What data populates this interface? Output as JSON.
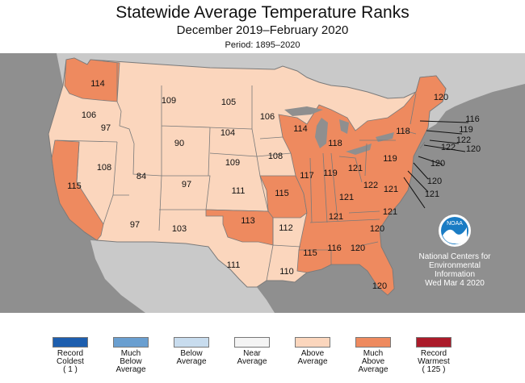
{
  "header": {
    "title": "Statewide Average Temperature Ranks",
    "subtitle": "December 2019–February 2020",
    "period": "Period: 1895–2020"
  },
  "credit": {
    "line1": "National Centers for",
    "line2": "Environmental",
    "line3": "Information",
    "date": "Wed Mar  4 2020",
    "logo_text": "NOAA"
  },
  "colors": {
    "ocean": "#8f8f8f",
    "land_outside": "#c9c9c9",
    "above_average": "#fbd6bd",
    "much_above_average": "#ee8a5f",
    "border": "#7a7a7a"
  },
  "legend": [
    {
      "label": "Record\nColdest\n( 1 )",
      "color": "#1d5eae"
    },
    {
      "label": "Much\nBelow\nAverage",
      "color": "#6a9fd0"
    },
    {
      "label": "Below\nAverage",
      "color": "#c8dcee"
    },
    {
      "label": "Near\nAverage",
      "color": "#f4f4f4"
    },
    {
      "label": "Above\nAverage",
      "color": "#fbd6bd"
    },
    {
      "label": "Much\nAbove\nAverage",
      "color": "#ee8a5f"
    },
    {
      "label": "Record\nWarmest\n( 125 )",
      "color": "#ab1b2a"
    }
  ],
  "states": [
    {
      "abbr": "WA",
      "rank": "114",
      "category": "Much Above Average"
    },
    {
      "abbr": "OR",
      "rank": "106",
      "category": "Above Average"
    },
    {
      "abbr": "CA",
      "rank": "115",
      "category": "Much Above Average"
    },
    {
      "abbr": "ID",
      "rank": "97",
      "category": "Above Average"
    },
    {
      "abbr": "NV",
      "rank": "108",
      "category": "Above Average"
    },
    {
      "abbr": "MT",
      "rank": "109",
      "category": "Above Average"
    },
    {
      "abbr": "WY",
      "rank": "90",
      "category": "Above Average"
    },
    {
      "abbr": "UT",
      "rank": "84",
      "category": "Above Average"
    },
    {
      "abbr": "AZ",
      "rank": "97",
      "category": "Above Average"
    },
    {
      "abbr": "CO",
      "rank": "97",
      "category": "Above Average"
    },
    {
      "abbr": "NM",
      "rank": "103",
      "category": "Above Average"
    },
    {
      "abbr": "ND",
      "rank": "105",
      "category": "Above Average"
    },
    {
      "abbr": "SD",
      "rank": "104",
      "category": "Above Average"
    },
    {
      "abbr": "NE",
      "rank": "109",
      "category": "Above Average"
    },
    {
      "abbr": "KS",
      "rank": "111",
      "category": "Above Average"
    },
    {
      "abbr": "OK",
      "rank": "113",
      "category": "Much Above Average"
    },
    {
      "abbr": "TX",
      "rank": "111",
      "category": "Above Average"
    },
    {
      "abbr": "MN",
      "rank": "106",
      "category": "Above Average"
    },
    {
      "abbr": "IA",
      "rank": "108",
      "category": "Above Average"
    },
    {
      "abbr": "MO",
      "rank": "115",
      "category": "Much Above Average"
    },
    {
      "abbr": "AR",
      "rank": "112",
      "category": "Above Average"
    },
    {
      "abbr": "LA",
      "rank": "110",
      "category": "Above Average"
    },
    {
      "abbr": "WI",
      "rank": "114",
      "category": "Much Above Average"
    },
    {
      "abbr": "IL",
      "rank": "117",
      "category": "Much Above Average"
    },
    {
      "abbr": "MI",
      "rank": "118",
      "category": "Much Above Average"
    },
    {
      "abbr": "IN",
      "rank": "119",
      "category": "Much Above Average"
    },
    {
      "abbr": "OH",
      "rank": "121",
      "category": "Much Above Average"
    },
    {
      "abbr": "KY",
      "rank": "121",
      "category": "Much Above Average"
    },
    {
      "abbr": "TN",
      "rank": "121",
      "category": "Much Above Average"
    },
    {
      "abbr": "MS",
      "rank": "115",
      "category": "Much Above Average"
    },
    {
      "abbr": "AL",
      "rank": "116",
      "category": "Much Above Average"
    },
    {
      "abbr": "GA",
      "rank": "120",
      "category": "Much Above Average"
    },
    {
      "abbr": "FL",
      "rank": "120",
      "category": "Much Above Average"
    },
    {
      "abbr": "SC",
      "rank": "120",
      "category": "Much Above Average"
    },
    {
      "abbr": "NC",
      "rank": "121",
      "category": "Much Above Average"
    },
    {
      "abbr": "VA",
      "rank": "121",
      "category": "Much Above Average"
    },
    {
      "abbr": "WV",
      "rank": "122",
      "category": "Much Above Average"
    },
    {
      "abbr": "PA",
      "rank": "119",
      "category": "Much Above Average"
    },
    {
      "abbr": "NY",
      "rank": "118",
      "category": "Much Above Average"
    },
    {
      "abbr": "ME",
      "rank": "120",
      "category": "Much Above Average"
    },
    {
      "abbr": "VT",
      "rank": "116",
      "category": "Much Above Average"
    },
    {
      "abbr": "NH",
      "rank": "119",
      "category": "Much Above Average"
    },
    {
      "abbr": "MA",
      "rank": "122",
      "category": "Much Above Average"
    },
    {
      "abbr": "RI",
      "rank": "120",
      "category": "Much Above Average"
    },
    {
      "abbr": "CT",
      "rank": "122",
      "category": "Much Above Average"
    },
    {
      "abbr": "NJ",
      "rank": "120",
      "category": "Much Above Average"
    },
    {
      "abbr": "DE",
      "rank": "120",
      "category": "Much Above Average"
    },
    {
      "abbr": "MD",
      "rank": "121",
      "category": "Much Above Average"
    }
  ]
}
